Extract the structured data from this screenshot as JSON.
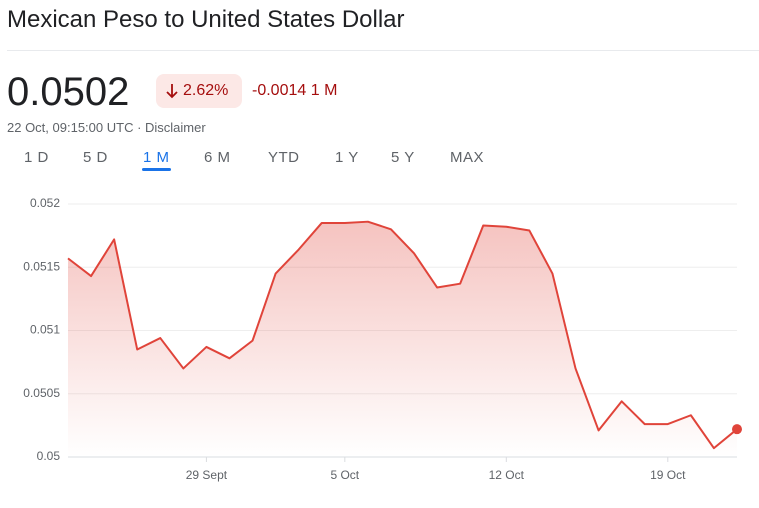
{
  "header": {
    "title": "Mexican Peso to United States Dollar",
    "price": "0.0502",
    "change_percent": "2.62%",
    "change_value": "-0.0014",
    "period": "1 M",
    "timestamp": "22 Oct, 09:15:00 UTC",
    "disclaimer": "Disclaimer"
  },
  "tabs": [
    "1 D",
    "5 D",
    "1 M",
    "6 M",
    "YTD",
    "1 Y",
    "5 Y",
    "MAX"
  ],
  "selected_tab": 2,
  "chart_data": {
    "type": "line",
    "categories": [
      null,
      null,
      null,
      null,
      null,
      null,
      "29 Sept",
      null,
      null,
      null,
      null,
      null,
      "5 Oct",
      null,
      null,
      null,
      null,
      null,
      null,
      "12 Oct",
      null,
      null,
      null,
      null,
      null,
      null,
      "19 Oct",
      null,
      null,
      null
    ],
    "values": [
      0.05157,
      0.05143,
      0.05172,
      0.05085,
      0.05094,
      0.0507,
      0.05087,
      0.05078,
      0.05092,
      0.05145,
      0.05164,
      0.05185,
      0.05185,
      0.05186,
      0.0518,
      0.05161,
      0.05134,
      0.05137,
      0.05183,
      0.05182,
      0.05179,
      0.05145,
      0.0507,
      0.05021,
      0.05044,
      0.05026,
      0.05026,
      0.05033,
      0.05007,
      0.05022
    ],
    "color": "#e0443a",
    "ylim": [
      0.05,
      0.05215
    ],
    "yticks": [
      0.05,
      0.0505,
      0.051,
      0.0515,
      0.052
    ],
    "grid": true
  }
}
